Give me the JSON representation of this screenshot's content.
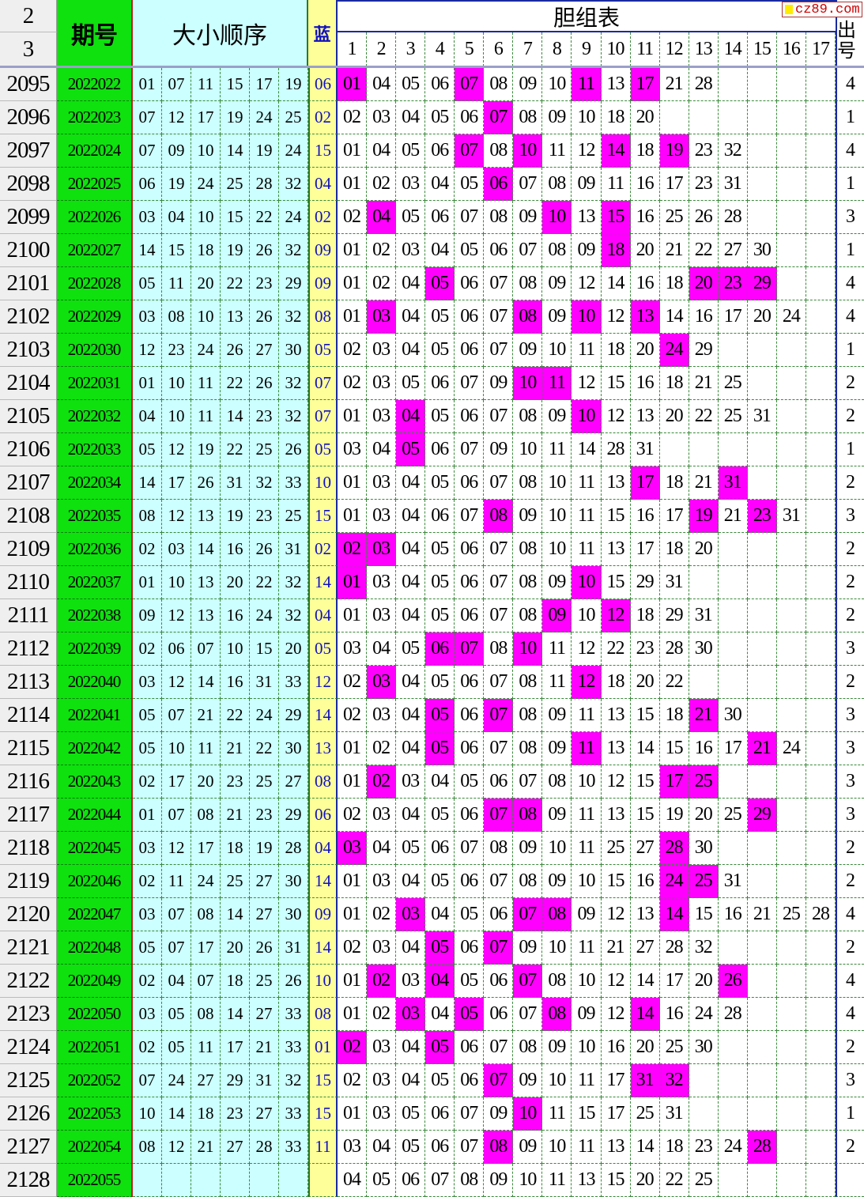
{
  "header": {
    "row_numbers": [
      "2",
      "3"
    ],
    "issue": "期号",
    "order": "大小顺序",
    "blue": "蓝",
    "dan_title": "胆组表",
    "dan_cols": [
      "1",
      "2",
      "3",
      "4",
      "5",
      "6",
      "7",
      "8",
      "9",
      "10",
      "11",
      "12",
      "13",
      "14",
      "15",
      "16",
      "17"
    ],
    "count": "出号",
    "logo": "cz89.com"
  },
  "colors": {
    "issue_bg": "#0ee10e",
    "red_bg": "#ccffff",
    "blue_bg": "#ffff99",
    "highlight": "#ff00ff"
  },
  "rows": [
    {
      "n": "2095",
      "q": "2022022",
      "r": [
        "01",
        "07",
        "11",
        "15",
        "17",
        "19"
      ],
      "b": "06",
      "d": [
        "01",
        "04",
        "05",
        "06",
        "07",
        "08",
        "09",
        "10",
        "11",
        "13",
        "17",
        "21",
        "28"
      ],
      "c": "4"
    },
    {
      "n": "2096",
      "q": "2022023",
      "r": [
        "07",
        "12",
        "17",
        "19",
        "24",
        "25"
      ],
      "b": "02",
      "d": [
        "02",
        "03",
        "04",
        "05",
        "06",
        "07",
        "08",
        "09",
        "10",
        "18",
        "20"
      ],
      "c": "1"
    },
    {
      "n": "2097",
      "q": "2022024",
      "r": [
        "07",
        "09",
        "10",
        "14",
        "19",
        "24"
      ],
      "b": "15",
      "d": [
        "01",
        "04",
        "05",
        "06",
        "07",
        "08",
        "10",
        "11",
        "12",
        "14",
        "18",
        "19",
        "23",
        "32"
      ],
      "c": "4"
    },
    {
      "n": "2098",
      "q": "2022025",
      "r": [
        "06",
        "19",
        "24",
        "25",
        "28",
        "32"
      ],
      "b": "04",
      "d": [
        "01",
        "02",
        "03",
        "04",
        "05",
        "06",
        "07",
        "08",
        "09",
        "11",
        "16",
        "17",
        "23",
        "31"
      ],
      "c": "1"
    },
    {
      "n": "2099",
      "q": "2022026",
      "r": [
        "03",
        "04",
        "10",
        "15",
        "22",
        "24"
      ],
      "b": "02",
      "d": [
        "02",
        "04",
        "05",
        "06",
        "07",
        "08",
        "09",
        "10",
        "13",
        "15",
        "16",
        "25",
        "26",
        "28"
      ],
      "c": "3"
    },
    {
      "n": "2100",
      "q": "2022027",
      "r": [
        "14",
        "15",
        "18",
        "19",
        "26",
        "32"
      ],
      "b": "09",
      "d": [
        "01",
        "02",
        "03",
        "04",
        "05",
        "06",
        "07",
        "08",
        "09",
        "18",
        "20",
        "21",
        "22",
        "27",
        "30"
      ],
      "c": "1"
    },
    {
      "n": "2101",
      "q": "2022028",
      "r": [
        "05",
        "11",
        "20",
        "22",
        "23",
        "29"
      ],
      "b": "09",
      "d": [
        "01",
        "02",
        "04",
        "05",
        "06",
        "07",
        "08",
        "09",
        "12",
        "14",
        "16",
        "18",
        "20",
        "23",
        "29"
      ],
      "c": "4"
    },
    {
      "n": "2102",
      "q": "2022029",
      "r": [
        "03",
        "08",
        "10",
        "13",
        "26",
        "32"
      ],
      "b": "08",
      "d": [
        "01",
        "03",
        "04",
        "05",
        "06",
        "07",
        "08",
        "09",
        "10",
        "12",
        "13",
        "14",
        "16",
        "17",
        "20",
        "24"
      ],
      "c": "4"
    },
    {
      "n": "2103",
      "q": "2022030",
      "r": [
        "12",
        "23",
        "24",
        "26",
        "27",
        "30"
      ],
      "b": "05",
      "d": [
        "02",
        "03",
        "04",
        "05",
        "06",
        "07",
        "09",
        "10",
        "11",
        "18",
        "20",
        "24",
        "29"
      ],
      "c": "1"
    },
    {
      "n": "2104",
      "q": "2022031",
      "r": [
        "01",
        "10",
        "11",
        "22",
        "26",
        "32"
      ],
      "b": "07",
      "d": [
        "02",
        "03",
        "05",
        "06",
        "07",
        "09",
        "10",
        "11",
        "12",
        "15",
        "16",
        "18",
        "21",
        "25"
      ],
      "c": "2"
    },
    {
      "n": "2105",
      "q": "2022032",
      "r": [
        "04",
        "10",
        "11",
        "14",
        "23",
        "32"
      ],
      "b": "07",
      "d": [
        "01",
        "03",
        "04",
        "05",
        "06",
        "07",
        "08",
        "09",
        "10",
        "12",
        "13",
        "20",
        "22",
        "25",
        "31"
      ],
      "c": "2"
    },
    {
      "n": "2106",
      "q": "2022033",
      "r": [
        "05",
        "12",
        "19",
        "22",
        "25",
        "26"
      ],
      "b": "05",
      "d": [
        "03",
        "04",
        "05",
        "06",
        "07",
        "09",
        "10",
        "11",
        "14",
        "28",
        "31"
      ],
      "c": "1"
    },
    {
      "n": "2107",
      "q": "2022034",
      "r": [
        "14",
        "17",
        "26",
        "31",
        "32",
        "33"
      ],
      "b": "10",
      "d": [
        "01",
        "03",
        "04",
        "05",
        "06",
        "07",
        "08",
        "10",
        "11",
        "13",
        "17",
        "18",
        "21",
        "31"
      ],
      "c": "2"
    },
    {
      "n": "2108",
      "q": "2022035",
      "r": [
        "08",
        "12",
        "13",
        "19",
        "23",
        "25"
      ],
      "b": "15",
      "d": [
        "01",
        "03",
        "04",
        "06",
        "07",
        "08",
        "09",
        "10",
        "11",
        "15",
        "16",
        "17",
        "19",
        "21",
        "23",
        "31"
      ],
      "c": "3"
    },
    {
      "n": "2109",
      "q": "2022036",
      "r": [
        "02",
        "03",
        "14",
        "16",
        "26",
        "31"
      ],
      "b": "02",
      "d": [
        "02",
        "03",
        "04",
        "05",
        "06",
        "07",
        "08",
        "10",
        "11",
        "13",
        "17",
        "18",
        "20"
      ],
      "c": "2"
    },
    {
      "n": "2110",
      "q": "2022037",
      "r": [
        "01",
        "10",
        "13",
        "20",
        "22",
        "32"
      ],
      "b": "14",
      "d": [
        "01",
        "03",
        "04",
        "05",
        "06",
        "07",
        "08",
        "09",
        "10",
        "15",
        "29",
        "31"
      ],
      "c": "2"
    },
    {
      "n": "2111",
      "q": "2022038",
      "r": [
        "09",
        "12",
        "13",
        "16",
        "24",
        "32"
      ],
      "b": "04",
      "d": [
        "01",
        "03",
        "04",
        "05",
        "06",
        "07",
        "08",
        "09",
        "10",
        "12",
        "18",
        "29",
        "31"
      ],
      "c": "2"
    },
    {
      "n": "2112",
      "q": "2022039",
      "r": [
        "02",
        "06",
        "07",
        "10",
        "15",
        "20"
      ],
      "b": "05",
      "d": [
        "03",
        "04",
        "05",
        "06",
        "07",
        "08",
        "10",
        "11",
        "12",
        "22",
        "23",
        "28",
        "30"
      ],
      "c": "3"
    },
    {
      "n": "2113",
      "q": "2022040",
      "r": [
        "03",
        "12",
        "14",
        "16",
        "31",
        "33"
      ],
      "b": "12",
      "d": [
        "02",
        "03",
        "04",
        "05",
        "06",
        "07",
        "08",
        "11",
        "12",
        "18",
        "20",
        "22"
      ],
      "c": "2"
    },
    {
      "n": "2114",
      "q": "2022041",
      "r": [
        "05",
        "07",
        "21",
        "22",
        "24",
        "29"
      ],
      "b": "14",
      "d": [
        "02",
        "03",
        "04",
        "05",
        "06",
        "07",
        "08",
        "09",
        "11",
        "13",
        "15",
        "18",
        "21",
        "30"
      ],
      "c": "3"
    },
    {
      "n": "2115",
      "q": "2022042",
      "r": [
        "05",
        "10",
        "11",
        "21",
        "22",
        "30"
      ],
      "b": "13",
      "d": [
        "01",
        "02",
        "04",
        "05",
        "06",
        "07",
        "08",
        "09",
        "11",
        "13",
        "14",
        "15",
        "16",
        "17",
        "21",
        "24"
      ],
      "c": "3"
    },
    {
      "n": "2116",
      "q": "2022043",
      "r": [
        "02",
        "17",
        "20",
        "23",
        "25",
        "27"
      ],
      "b": "08",
      "d": [
        "01",
        "02",
        "03",
        "04",
        "05",
        "06",
        "07",
        "08",
        "10",
        "12",
        "15",
        "17",
        "25"
      ],
      "c": "3"
    },
    {
      "n": "2117",
      "q": "2022044",
      "r": [
        "01",
        "07",
        "08",
        "21",
        "23",
        "29"
      ],
      "b": "06",
      "d": [
        "02",
        "03",
        "04",
        "05",
        "06",
        "07",
        "08",
        "09",
        "11",
        "13",
        "15",
        "19",
        "20",
        "25",
        "29"
      ],
      "c": "3"
    },
    {
      "n": "2118",
      "q": "2022045",
      "r": [
        "03",
        "12",
        "17",
        "18",
        "19",
        "28"
      ],
      "b": "04",
      "d": [
        "03",
        "04",
        "05",
        "06",
        "07",
        "08",
        "09",
        "10",
        "11",
        "25",
        "27",
        "28",
        "30"
      ],
      "c": "2"
    },
    {
      "n": "2119",
      "q": "2022046",
      "r": [
        "02",
        "11",
        "24",
        "25",
        "27",
        "30"
      ],
      "b": "14",
      "d": [
        "01",
        "03",
        "04",
        "05",
        "06",
        "07",
        "08",
        "09",
        "10",
        "15",
        "16",
        "24",
        "25",
        "31"
      ],
      "c": "2"
    },
    {
      "n": "2120",
      "q": "2022047",
      "r": [
        "03",
        "07",
        "08",
        "14",
        "27",
        "30"
      ],
      "b": "09",
      "d": [
        "01",
        "02",
        "03",
        "04",
        "05",
        "06",
        "07",
        "08",
        "09",
        "12",
        "13",
        "14",
        "15",
        "16",
        "21",
        "25",
        "28"
      ],
      "c": "4"
    },
    {
      "n": "2121",
      "q": "2022048",
      "r": [
        "05",
        "07",
        "17",
        "20",
        "26",
        "31"
      ],
      "b": "14",
      "d": [
        "02",
        "03",
        "04",
        "05",
        "06",
        "07",
        "09",
        "10",
        "11",
        "21",
        "27",
        "28",
        "32"
      ],
      "c": "2"
    },
    {
      "n": "2122",
      "q": "2022049",
      "r": [
        "02",
        "04",
        "07",
        "18",
        "25",
        "26"
      ],
      "b": "10",
      "d": [
        "01",
        "02",
        "03",
        "04",
        "05",
        "06",
        "07",
        "08",
        "10",
        "12",
        "14",
        "17",
        "20",
        "26"
      ],
      "c": "4"
    },
    {
      "n": "2123",
      "q": "2022050",
      "r": [
        "03",
        "05",
        "08",
        "14",
        "27",
        "33"
      ],
      "b": "08",
      "d": [
        "01",
        "02",
        "03",
        "04",
        "05",
        "06",
        "07",
        "08",
        "09",
        "12",
        "14",
        "16",
        "24",
        "28"
      ],
      "c": "4"
    },
    {
      "n": "2124",
      "q": "2022051",
      "r": [
        "02",
        "05",
        "11",
        "17",
        "21",
        "33"
      ],
      "b": "01",
      "d": [
        "02",
        "03",
        "04",
        "05",
        "06",
        "07",
        "08",
        "09",
        "10",
        "16",
        "20",
        "25",
        "30"
      ],
      "c": "2"
    },
    {
      "n": "2125",
      "q": "2022052",
      "r": [
        "07",
        "24",
        "27",
        "29",
        "31",
        "32"
      ],
      "b": "15",
      "d": [
        "02",
        "03",
        "04",
        "05",
        "06",
        "07",
        "09",
        "10",
        "11",
        "17",
        "31",
        "32"
      ],
      "c": "3"
    },
    {
      "n": "2126",
      "q": "2022053",
      "r": [
        "10",
        "14",
        "18",
        "23",
        "27",
        "33"
      ],
      "b": "15",
      "d": [
        "01",
        "03",
        "05",
        "06",
        "07",
        "09",
        "10",
        "11",
        "15",
        "17",
        "25",
        "31"
      ],
      "c": "1"
    },
    {
      "n": "2127",
      "q": "2022054",
      "r": [
        "08",
        "12",
        "21",
        "27",
        "28",
        "33"
      ],
      "b": "11",
      "d": [
        "03",
        "04",
        "05",
        "06",
        "07",
        "08",
        "09",
        "10",
        "11",
        "13",
        "14",
        "18",
        "23",
        "24",
        "28"
      ],
      "c": "2"
    },
    {
      "n": "2128",
      "q": "2022055",
      "r": [
        "",
        "",
        "",
        "",
        "",
        ""
      ],
      "b": "",
      "d": [
        "04",
        "05",
        "06",
        "07",
        "08",
        "09",
        "10",
        "11",
        "13",
        "15",
        "20",
        "22",
        "25"
      ],
      "c": ""
    }
  ]
}
